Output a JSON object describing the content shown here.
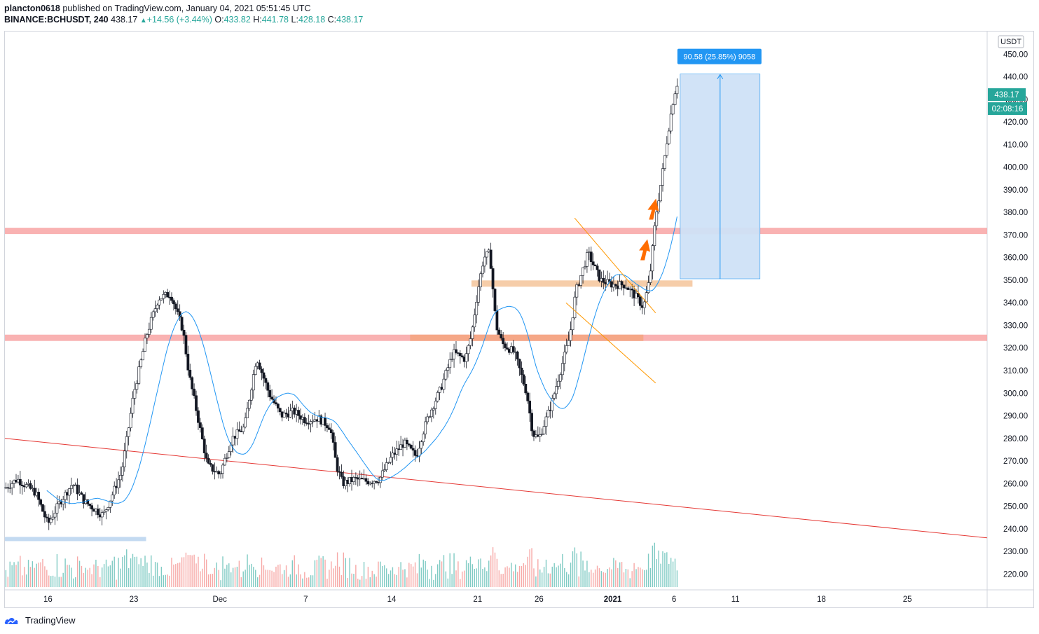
{
  "header": {
    "author": "plancton0618",
    "published_text": "published on TradingView.com, January 04, 2021 05:51:45 UTC",
    "symbol": "BINANCE:BCHUSDT, 240",
    "last_price": "438.17",
    "change_arrow": "▲",
    "change": "+14.56 (+3.44%)",
    "open_label": "O:",
    "open": "433.82",
    "high_label": "H:",
    "high": "441.78",
    "low_label": "L:",
    "low": "428.18",
    "close_label": "C:",
    "close": "438.17"
  },
  "branding": {
    "logo_text": "TradingView"
  },
  "colors": {
    "up": "#26a69a",
    "down": "#ef5350",
    "candle_body": "#131722",
    "ma": "#2196f3",
    "trendline": "#e53935",
    "resistance": "#f8a5a5",
    "support_orange": "#f5c8a0",
    "wedge": "#ff9800",
    "measure_fill": "#cfe2f7",
    "measure_label_bg": "#2196f3",
    "arrow": "#ff6d00",
    "price_badge": "#26a69a"
  },
  "chart_data": {
    "type": "candlestick",
    "currency_label": "USDT",
    "price_axis": {
      "ylim": [
        213,
        460
      ],
      "ticks": [
        "450.00",
        "440.00",
        "430.00",
        "420.00",
        "410.00",
        "400.00",
        "390.00",
        "380.00",
        "370.00",
        "360.00",
        "350.00",
        "340.00",
        "330.00",
        "320.00",
        "310.00",
        "300.00",
        "290.00",
        "280.00",
        "270.00",
        "260.00",
        "250.00",
        "240.00",
        "230.00",
        "220.00"
      ],
      "tick_values": [
        450,
        440,
        430,
        420,
        410,
        400,
        390,
        380,
        370,
        360,
        350,
        340,
        330,
        320,
        310,
        300,
        290,
        280,
        270,
        260,
        250,
        240,
        230,
        220
      ]
    },
    "time_axis": {
      "labels": [
        "16",
        "23",
        "Dec",
        "7",
        "14",
        "21",
        "26",
        "2021",
        "6",
        "11",
        "18",
        "25"
      ],
      "positions": [
        -1,
        6,
        13,
        20,
        27,
        34,
        39,
        45,
        50,
        55,
        62,
        69
      ],
      "xlim": [
        -4.5,
        75.5
      ]
    },
    "last_price_badge": "438.17",
    "countdown": "02:08:16",
    "measure": {
      "label": "90.58 (25.85%) 9058",
      "x_start": 50.5,
      "x_end": 57,
      "y_low": 350.6,
      "y_high": 441.2
    },
    "levels": [
      {
        "name": "resistance-high",
        "price": 371.8,
        "x_from": -4.5,
        "x_to": 75.5
      },
      {
        "name": "resistance-low",
        "price": 324.5,
        "x_from": -4.5,
        "x_to": 75.5
      },
      {
        "name": "support-mid",
        "price": 348.5,
        "x_from": 33.5,
        "x_to": 51.5
      },
      {
        "name": "support-low",
        "price": 324.5,
        "x_from": 28.5,
        "x_to": 47.5
      },
      {
        "name": "support-bottom",
        "price": 235.5,
        "x_from": -4.5,
        "x_to": 7
      }
    ],
    "trendline": {
      "x1": -4.5,
      "y1": 280,
      "x2": 75.5,
      "y2": 236
    },
    "wedge": {
      "upper": [
        [
          41.9,
          377.5
        ],
        [
          48.5,
          335.5
        ]
      ],
      "lower": [
        [
          41.2,
          340
        ],
        [
          48.5,
          304.5
        ]
      ]
    },
    "anchors": [
      [
        -4.5,
        258
      ],
      [
        -3.5,
        262
      ],
      [
        -2,
        256
      ],
      [
        -1,
        242
      ],
      [
        0,
        252
      ],
      [
        1,
        260
      ],
      [
        2,
        252
      ],
      [
        3,
        248
      ],
      [
        3.5,
        246
      ],
      [
        4,
        252
      ],
      [
        5,
        265
      ],
      [
        5.5,
        282
      ],
      [
        6,
        300
      ],
      [
        6.5,
        312
      ],
      [
        7,
        325
      ],
      [
        8,
        342
      ],
      [
        9,
        344
      ],
      [
        10,
        328
      ],
      [
        10.5,
        308
      ],
      [
        11,
        295
      ],
      [
        12,
        268
      ],
      [
        13,
        264
      ],
      [
        13.5,
        272
      ],
      [
        14,
        280
      ],
      [
        15,
        285
      ],
      [
        16,
        316
      ],
      [
        17,
        300
      ],
      [
        18,
        290
      ],
      [
        19,
        292
      ],
      [
        20,
        288
      ],
      [
        21,
        289
      ],
      [
        22,
        285
      ],
      [
        22.5,
        268
      ],
      [
        23,
        260
      ],
      [
        24,
        262
      ],
      [
        25,
        261
      ],
      [
        26,
        262
      ],
      [
        27,
        272
      ],
      [
        28,
        278
      ],
      [
        29,
        272
      ],
      [
        29.5,
        282
      ],
      [
        30,
        290
      ],
      [
        31,
        302
      ],
      [
        32,
        318
      ],
      [
        33,
        315
      ],
      [
        33.5,
        326
      ],
      [
        34,
        345
      ],
      [
        34.5,
        360
      ],
      [
        35,
        362
      ],
      [
        35.5,
        330
      ],
      [
        36,
        322
      ],
      [
        37,
        318
      ],
      [
        38,
        300
      ],
      [
        38.5,
        282
      ],
      [
        39,
        280
      ],
      [
        40,
        295
      ],
      [
        41,
        315
      ],
      [
        41.5,
        325
      ],
      [
        42,
        345
      ],
      [
        43,
        362
      ],
      [
        44,
        350
      ],
      [
        45,
        348
      ],
      [
        46,
        348
      ],
      [
        47,
        342
      ],
      [
        47.5,
        338
      ],
      [
        48,
        350
      ],
      [
        48.5,
        378
      ],
      [
        49,
        395
      ],
      [
        49.5,
        415
      ],
      [
        50,
        432
      ],
      [
        50.3,
        438
      ]
    ]
  }
}
